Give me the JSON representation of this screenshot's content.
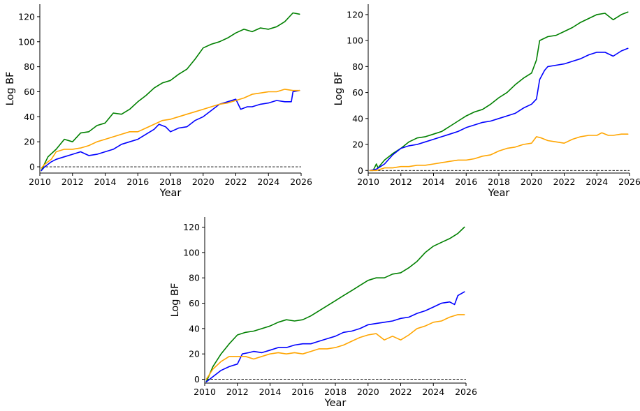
{
  "chart_data": [
    {
      "type": "line",
      "xlabel": "Year",
      "ylabel": "Log BF",
      "xlim": [
        2010,
        2026
      ],
      "ylim": [
        -5,
        130
      ],
      "xticks": [
        2010,
        2012,
        2014,
        2016,
        2018,
        2020,
        2022,
        2024,
        2026
      ],
      "yticks": [
        0,
        20,
        40,
        60,
        80,
        100,
        120
      ],
      "reference_line": {
        "y": 0,
        "style": "dashed",
        "color": "#000000"
      },
      "grid": false,
      "series": [
        {
          "color": "#008000",
          "x": [
            2010.1,
            2010.2,
            2010.5,
            2011.0,
            2011.5,
            2012.0,
            2012.5,
            2013.0,
            2013.5,
            2014.0,
            2014.5,
            2015.0,
            2015.5,
            2016.0,
            2016.5,
            2017.0,
            2017.5,
            2018.0,
            2018.5,
            2019.0,
            2019.5,
            2020.0,
            2020.5,
            2021.0,
            2021.5,
            2022.0,
            2022.5,
            2023.0,
            2023.5,
            2024.0,
            2024.5,
            2025.0,
            2025.5,
            2025.9
          ],
          "y": [
            -3,
            0,
            8,
            14,
            22,
            20,
            27,
            28,
            33,
            35,
            43,
            42,
            46,
            52,
            57,
            63,
            67,
            69,
            74,
            78,
            86,
            95,
            98,
            100,
            103,
            107,
            110,
            108,
            111,
            110,
            112,
            116,
            123,
            122
          ]
        },
        {
          "color": "#0000ff",
          "x": [
            2010.1,
            2010.3,
            2010.7,
            2011.0,
            2011.5,
            2012.0,
            2012.5,
            2013.0,
            2013.5,
            2014.0,
            2014.5,
            2015.0,
            2015.5,
            2016.0,
            2016.5,
            2017.0,
            2017.3,
            2017.7,
            2018.0,
            2018.5,
            2019.0,
            2019.5,
            2020.0,
            2020.5,
            2021.0,
            2021.5,
            2022.0,
            2022.3,
            2022.7,
            2023.0,
            2023.5,
            2024.0,
            2024.5,
            2025.0,
            2025.4,
            2025.5,
            2025.9
          ],
          "y": [
            -3,
            0,
            4,
            6,
            8,
            10,
            12,
            9,
            10,
            12,
            14,
            18,
            20,
            22,
            26,
            30,
            34,
            32,
            28,
            31,
            32,
            37,
            40,
            45,
            50,
            52,
            54,
            46,
            48,
            48,
            50,
            51,
            53,
            52,
            52,
            60,
            61
          ]
        },
        {
          "color": "#ffa500",
          "x": [
            2010.1,
            2010.3,
            2010.7,
            2011.0,
            2011.5,
            2012.0,
            2012.5,
            2013.0,
            2013.5,
            2014.0,
            2014.5,
            2015.0,
            2015.5,
            2016.0,
            2016.5,
            2017.0,
            2017.5,
            2018.0,
            2018.5,
            2019.0,
            2019.5,
            2020.0,
            2020.5,
            2021.0,
            2021.5,
            2022.0,
            2022.5,
            2023.0,
            2023.5,
            2024.0,
            2024.5,
            2025.0,
            2025.5,
            2025.9
          ],
          "y": [
            -1,
            2,
            6,
            12,
            14,
            14,
            15,
            17,
            20,
            22,
            24,
            26,
            28,
            28,
            31,
            34,
            37,
            38,
            40,
            42,
            44,
            46,
            48,
            50,
            51,
            53,
            55,
            58,
            59,
            60,
            60,
            62,
            61,
            61
          ]
        }
      ]
    },
    {
      "type": "line",
      "xlabel": "Year",
      "ylabel": "Log BF",
      "xlim": [
        2010,
        2026
      ],
      "ylim": [
        -2,
        128
      ],
      "xticks": [
        2010,
        2012,
        2014,
        2016,
        2018,
        2020,
        2022,
        2024,
        2026
      ],
      "yticks": [
        0,
        20,
        40,
        60,
        80,
        100,
        120
      ],
      "reference_line": {
        "y": 0,
        "style": "dashed",
        "color": "#000000"
      },
      "grid": false,
      "series": [
        {
          "color": "#008000",
          "x": [
            2010.1,
            2010.3,
            2010.5,
            2010.6,
            2011.0,
            2011.5,
            2012.0,
            2012.5,
            2013.0,
            2013.5,
            2014.0,
            2014.5,
            2015.0,
            2015.5,
            2016.0,
            2016.5,
            2017.0,
            2017.5,
            2018.0,
            2018.5,
            2019.0,
            2019.5,
            2020.0,
            2020.3,
            2020.5,
            2021.0,
            2021.5,
            2022.0,
            2022.5,
            2023.0,
            2023.5,
            2024.0,
            2024.5,
            2024.8,
            2025.0,
            2025.5,
            2025.9
          ],
          "y": [
            0,
            0,
            5,
            2,
            8,
            13,
            17,
            22,
            25,
            26,
            28,
            30,
            34,
            38,
            42,
            45,
            47,
            51,
            56,
            60,
            66,
            71,
            75,
            85,
            100,
            103,
            104,
            107,
            110,
            114,
            117,
            120,
            121,
            118,
            116,
            120,
            122
          ]
        },
        {
          "color": "#0000ff",
          "x": [
            2010.1,
            2010.5,
            2011.0,
            2011.5,
            2012.0,
            2012.5,
            2013.0,
            2013.5,
            2014.0,
            2014.5,
            2015.0,
            2015.5,
            2016.0,
            2016.5,
            2017.0,
            2017.5,
            2018.0,
            2018.5,
            2019.0,
            2019.5,
            2020.0,
            2020.3,
            2020.5,
            2020.8,
            2021.0,
            2021.5,
            2022.0,
            2022.5,
            2023.0,
            2023.5,
            2024.0,
            2024.5,
            2025.0,
            2025.5,
            2025.9
          ],
          "y": [
            0,
            1,
            5,
            12,
            17,
            19,
            20,
            22,
            24,
            26,
            28,
            30,
            33,
            35,
            37,
            38,
            40,
            42,
            44,
            48,
            51,
            55,
            70,
            77,
            80,
            81,
            82,
            84,
            86,
            89,
            91,
            91,
            88,
            92,
            94
          ]
        },
        {
          "color": "#ffa500",
          "x": [
            2010.1,
            2010.5,
            2011.0,
            2011.5,
            2012.0,
            2012.5,
            2013.0,
            2013.5,
            2014.0,
            2014.5,
            2015.0,
            2015.5,
            2016.0,
            2016.5,
            2017.0,
            2017.5,
            2018.0,
            2018.5,
            2019.0,
            2019.5,
            2020.0,
            2020.3,
            2020.6,
            2021.0,
            2021.5,
            2022.0,
            2022.5,
            2023.0,
            2023.5,
            2024.0,
            2024.3,
            2024.7,
            2025.0,
            2025.5,
            2025.9
          ],
          "y": [
            0,
            0,
            2,
            2,
            3,
            3,
            4,
            4,
            5,
            6,
            7,
            8,
            8,
            9,
            11,
            12,
            15,
            17,
            18,
            20,
            21,
            26,
            25,
            23,
            22,
            21,
            24,
            26,
            27,
            27,
            29,
            27,
            27,
            28,
            28
          ]
        }
      ]
    },
    {
      "type": "line",
      "xlabel": "Year",
      "ylabel": "Log BF",
      "xlim": [
        2010,
        2026
      ],
      "ylim": [
        -3,
        128
      ],
      "xticks": [
        2010,
        2012,
        2014,
        2016,
        2018,
        2020,
        2022,
        2024,
        2026
      ],
      "yticks": [
        0,
        20,
        40,
        60,
        80,
        100,
        120
      ],
      "reference_line": {
        "y": 0,
        "style": "dashed",
        "color": "#000000"
      },
      "grid": false,
      "series": [
        {
          "color": "#008000",
          "x": [
            2010.1,
            2010.5,
            2011.0,
            2011.5,
            2012.0,
            2012.5,
            2013.0,
            2013.5,
            2014.0,
            2014.5,
            2015.0,
            2015.5,
            2016.0,
            2016.5,
            2017.0,
            2017.5,
            2018.0,
            2018.5,
            2019.0,
            2019.5,
            2020.0,
            2020.5,
            2021.0,
            2021.5,
            2022.0,
            2022.5,
            2023.0,
            2023.5,
            2024.0,
            2024.5,
            2025.0,
            2025.5,
            2025.9
          ],
          "y": [
            -2,
            10,
            20,
            28,
            35,
            37,
            38,
            40,
            42,
            45,
            47,
            46,
            47,
            50,
            54,
            58,
            62,
            66,
            70,
            74,
            78,
            80,
            80,
            83,
            84,
            88,
            93,
            100,
            105,
            108,
            111,
            115,
            120
          ]
        },
        {
          "color": "#0000ff",
          "x": [
            2010.1,
            2010.5,
            2011.0,
            2011.5,
            2012.0,
            2012.3,
            2012.7,
            2013.0,
            2013.5,
            2014.0,
            2014.5,
            2015.0,
            2015.5,
            2016.0,
            2016.5,
            2017.0,
            2017.5,
            2018.0,
            2018.5,
            2019.0,
            2019.5,
            2020.0,
            2020.5,
            2021.0,
            2021.5,
            2022.0,
            2022.5,
            2023.0,
            2023.5,
            2024.0,
            2024.5,
            2025.0,
            2025.3,
            2025.5,
            2025.9
          ],
          "y": [
            -2,
            2,
            7,
            10,
            12,
            20,
            21,
            22,
            21,
            23,
            25,
            25,
            27,
            28,
            28,
            30,
            32,
            34,
            37,
            38,
            40,
            43,
            44,
            45,
            46,
            48,
            49,
            52,
            54,
            57,
            60,
            61,
            59,
            66,
            69
          ]
        },
        {
          "color": "#ffa500",
          "x": [
            2010.1,
            2010.5,
            2011.0,
            2011.5,
            2012.0,
            2012.5,
            2013.0,
            2013.5,
            2014.0,
            2014.5,
            2015.0,
            2015.5,
            2016.0,
            2016.5,
            2017.0,
            2017.5,
            2018.0,
            2018.5,
            2019.0,
            2019.5,
            2020.0,
            2020.5,
            2021.0,
            2021.5,
            2022.0,
            2022.5,
            2023.0,
            2023.5,
            2024.0,
            2024.5,
            2025.0,
            2025.5,
            2025.9
          ],
          "y": [
            0,
            8,
            14,
            18,
            18,
            18,
            16,
            18,
            20,
            21,
            20,
            21,
            20,
            22,
            24,
            24,
            25,
            27,
            30,
            33,
            35,
            36,
            31,
            34,
            31,
            35,
            40,
            42,
            45,
            46,
            49,
            51,
            51
          ]
        }
      ]
    }
  ]
}
